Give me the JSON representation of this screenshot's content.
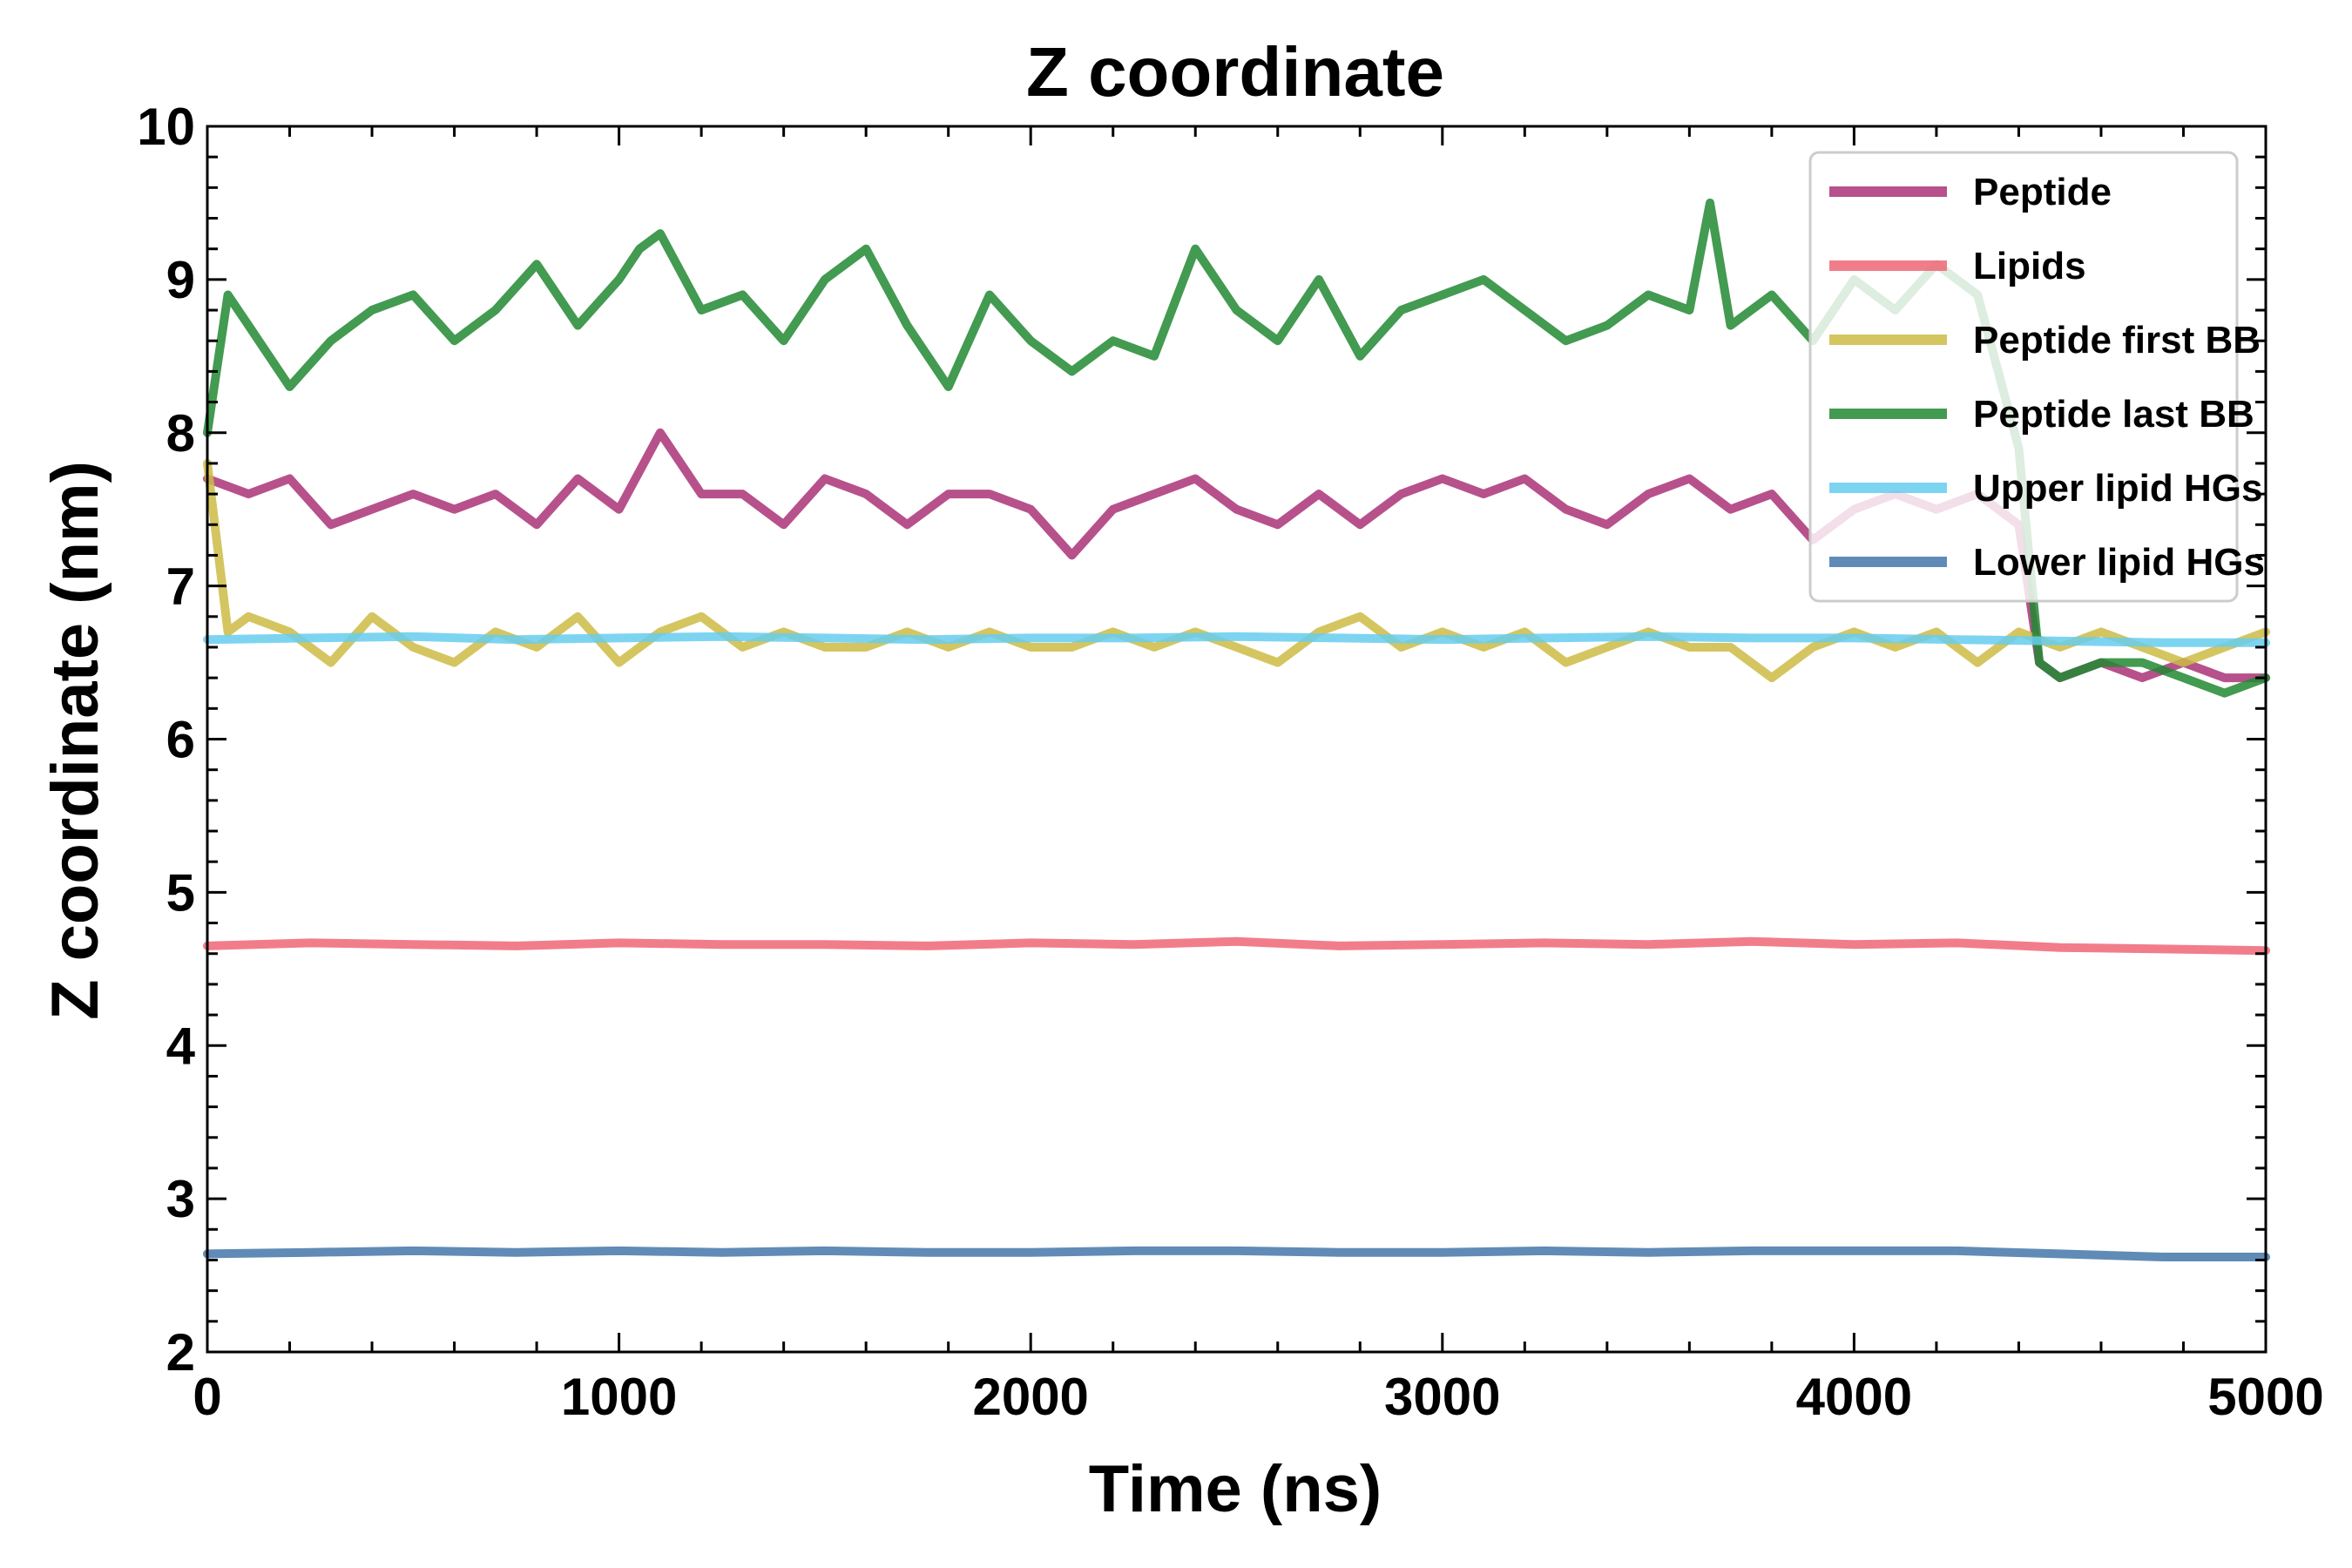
{
  "chart_data": {
    "type": "line",
    "title": "Z coordinate",
    "xlabel": "Time (ns)",
    "ylabel": "Z coordinate (nm)",
    "xlim": [
      0,
      5000
    ],
    "ylim": [
      2,
      10
    ],
    "xticks": [
      "0",
      "1000",
      "2000",
      "3000",
      "4000",
      "5000"
    ],
    "yticks": [
      "2",
      "3",
      "4",
      "5",
      "6",
      "7",
      "8",
      "9",
      "10"
    ],
    "grid": false,
    "legend_position": "top-right",
    "series": [
      {
        "name": "Peptide",
        "color": "#AA3377",
        "x": [
          0,
          100,
          200,
          300,
          400,
          500,
          600,
          700,
          800,
          900,
          1000,
          1100,
          1200,
          1300,
          1400,
          1500,
          1600,
          1700,
          1800,
          1900,
          2000,
          2100,
          2200,
          2300,
          2400,
          2500,
          2600,
          2700,
          2800,
          2900,
          3000,
          3100,
          3200,
          3300,
          3400,
          3500,
          3600,
          3700,
          3800,
          3900,
          4000,
          4100,
          4200,
          4300,
          4400,
          4450,
          4500,
          4600,
          4700,
          4800,
          4900,
          5000
        ],
        "y": [
          7.7,
          7.6,
          7.7,
          7.4,
          7.5,
          7.6,
          7.5,
          7.6,
          7.4,
          7.7,
          7.5,
          8.0,
          7.6,
          7.6,
          7.4,
          7.7,
          7.6,
          7.4,
          7.6,
          7.6,
          7.5,
          7.2,
          7.5,
          7.6,
          7.7,
          7.5,
          7.4,
          7.6,
          7.4,
          7.6,
          7.7,
          7.6,
          7.7,
          7.5,
          7.4,
          7.6,
          7.7,
          7.5,
          7.6,
          7.3,
          7.5,
          7.6,
          7.5,
          7.6,
          7.4,
          6.5,
          6.4,
          6.5,
          6.4,
          6.5,
          6.4,
          6.4
        ]
      },
      {
        "name": "Lipids",
        "color": "#EE6677",
        "x": [
          0,
          250,
          500,
          750,
          1000,
          1250,
          1500,
          1750,
          2000,
          2250,
          2500,
          2750,
          3000,
          3250,
          3500,
          3750,
          4000,
          4250,
          4500,
          4750,
          5000
        ],
        "y": [
          4.65,
          4.67,
          4.66,
          4.65,
          4.67,
          4.66,
          4.66,
          4.65,
          4.67,
          4.66,
          4.68,
          4.65,
          4.66,
          4.67,
          4.66,
          4.68,
          4.66,
          4.67,
          4.64,
          4.63,
          4.62
        ]
      },
      {
        "name": "Peptide first BB",
        "color": "#CCBB44",
        "x": [
          0,
          50,
          100,
          200,
          300,
          400,
          500,
          600,
          700,
          800,
          900,
          1000,
          1100,
          1200,
          1300,
          1400,
          1500,
          1600,
          1700,
          1800,
          1900,
          2000,
          2100,
          2200,
          2300,
          2400,
          2500,
          2600,
          2700,
          2800,
          2900,
          3000,
          3100,
          3200,
          3300,
          3400,
          3500,
          3600,
          3700,
          3800,
          3900,
          4000,
          4100,
          4200,
          4300,
          4400,
          4500,
          4600,
          4700,
          4800,
          4900,
          5000
        ],
        "y": [
          7.8,
          6.7,
          6.8,
          6.7,
          6.5,
          6.8,
          6.6,
          6.5,
          6.7,
          6.6,
          6.8,
          6.5,
          6.7,
          6.8,
          6.6,
          6.7,
          6.6,
          6.6,
          6.7,
          6.6,
          6.7,
          6.6,
          6.6,
          6.7,
          6.6,
          6.7,
          6.6,
          6.5,
          6.7,
          6.8,
          6.6,
          6.7,
          6.6,
          6.7,
          6.5,
          6.6,
          6.7,
          6.6,
          6.6,
          6.4,
          6.6,
          6.7,
          6.6,
          6.7,
          6.5,
          6.7,
          6.6,
          6.7,
          6.6,
          6.5,
          6.6,
          6.7
        ]
      },
      {
        "name": "Peptide last BB",
        "color": "#228833",
        "x": [
          0,
          50,
          100,
          200,
          300,
          400,
          500,
          600,
          700,
          800,
          900,
          1000,
          1050,
          1100,
          1200,
          1300,
          1400,
          1500,
          1600,
          1700,
          1800,
          1900,
          2000,
          2100,
          2200,
          2300,
          2400,
          2500,
          2600,
          2700,
          2800,
          2900,
          3000,
          3100,
          3200,
          3300,
          3400,
          3500,
          3600,
          3650,
          3700,
          3800,
          3900,
          4000,
          4100,
          4200,
          4300,
          4400,
          4450,
          4500,
          4600,
          4700,
          4800,
          4900,
          5000
        ],
        "y": [
          8.0,
          8.9,
          8.7,
          8.3,
          8.6,
          8.8,
          8.9,
          8.6,
          8.8,
          9.1,
          8.7,
          9.0,
          9.2,
          9.3,
          8.8,
          8.9,
          8.6,
          9.0,
          9.2,
          8.7,
          8.3,
          8.9,
          8.6,
          8.4,
          8.6,
          8.5,
          9.2,
          8.8,
          8.6,
          9.0,
          8.5,
          8.8,
          8.9,
          9.0,
          8.8,
          8.6,
          8.7,
          8.9,
          8.8,
          9.5,
          8.7,
          8.9,
          8.6,
          9.0,
          8.8,
          9.1,
          8.9,
          7.9,
          6.5,
          6.4,
          6.5,
          6.5,
          6.4,
          6.3,
          6.4
        ]
      },
      {
        "name": "Upper lipid HGs",
        "color": "#66CCEE",
        "x": [
          0,
          250,
          500,
          750,
          1000,
          1250,
          1500,
          1750,
          2000,
          2250,
          2500,
          2750,
          3000,
          3250,
          3500,
          3750,
          4000,
          4250,
          4500,
          4750,
          5000
        ],
        "y": [
          6.65,
          6.66,
          6.67,
          6.65,
          6.66,
          6.67,
          6.66,
          6.65,
          6.66,
          6.66,
          6.67,
          6.66,
          6.65,
          6.66,
          6.67,
          6.66,
          6.66,
          6.65,
          6.64,
          6.63,
          6.63
        ]
      },
      {
        "name": "Lower lipid HGs",
        "color": "#4477AA",
        "x": [
          0,
          250,
          500,
          750,
          1000,
          1250,
          1500,
          1750,
          2000,
          2250,
          2500,
          2750,
          3000,
          3250,
          3500,
          3750,
          4000,
          4250,
          4500,
          4750,
          5000
        ],
        "y": [
          2.64,
          2.65,
          2.66,
          2.65,
          2.66,
          2.65,
          2.66,
          2.65,
          2.65,
          2.66,
          2.66,
          2.65,
          2.65,
          2.66,
          2.65,
          2.66,
          2.66,
          2.66,
          2.64,
          2.62,
          2.62
        ]
      }
    ]
  }
}
